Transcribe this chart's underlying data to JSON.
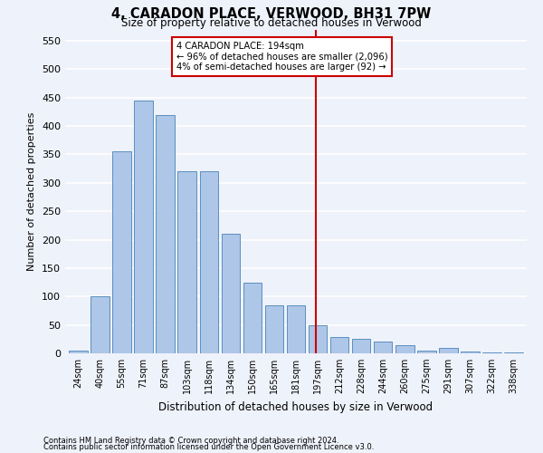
{
  "title1": "4, CARADON PLACE, VERWOOD, BH31 7PW",
  "title2": "Size of property relative to detached houses in Verwood",
  "xlabel": "Distribution of detached houses by size in Verwood",
  "ylabel": "Number of detached properties",
  "footnote1": "Contains HM Land Registry data © Crown copyright and database right 2024.",
  "footnote2": "Contains public sector information licensed under the Open Government Licence v3.0.",
  "bar_labels": [
    "24sqm",
    "40sqm",
    "55sqm",
    "71sqm",
    "87sqm",
    "103sqm",
    "118sqm",
    "134sqm",
    "150sqm",
    "165sqm",
    "181sqm",
    "197sqm",
    "212sqm",
    "228sqm",
    "244sqm",
    "260sqm",
    "275sqm",
    "291sqm",
    "307sqm",
    "322sqm",
    "338sqm"
  ],
  "bar_values": [
    5,
    100,
    355,
    445,
    420,
    320,
    320,
    210,
    125,
    85,
    85,
    50,
    28,
    25,
    20,
    15,
    5,
    10,
    3,
    2,
    2
  ],
  "bar_color": "#aec6e8",
  "bar_edge_color": "#5a8fc0",
  "annotation_line0": "4 CARADON PLACE: 194sqm",
  "annotation_line1": "← 96% of detached houses are smaller (2,096)",
  "annotation_line2": "4% of semi-detached houses are larger (92) →",
  "red_line_color": "#cc0000",
  "annotation_box_color": "#cc0000",
  "ylim": [
    0,
    570
  ],
  "background_color": "#eef2fa",
  "grid_color": "#ffffff"
}
